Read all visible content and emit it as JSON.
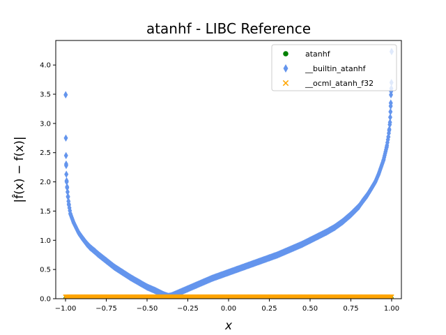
{
  "chart_data": {
    "type": "scatter",
    "title": "atanhf - LIBC Reference",
    "xlabel": "x",
    "ylabel": "|f̂(x) − f(x)|",
    "xlim": [
      -1.06,
      1.06
    ],
    "ylim": [
      0,
      4.42
    ],
    "xticks": [
      -1.0,
      -0.75,
      -0.5,
      -0.25,
      0.0,
      0.25,
      0.5,
      0.75,
      1.0
    ],
    "xtick_labels": [
      "−1.00",
      "−0.75",
      "−0.50",
      "−0.25",
      "0.00",
      "0.25",
      "0.50",
      "0.75",
      "1.00"
    ],
    "yticks": [
      0.0,
      0.5,
      1.0,
      1.5,
      2.0,
      2.5,
      3.0,
      3.5,
      4.0
    ],
    "ytick_labels": [
      "0.0",
      "0.5",
      "1.0",
      "1.5",
      "2.0",
      "2.5",
      "3.0",
      "3.5",
      "4.0"
    ],
    "grid": false,
    "legend_position": "top-right",
    "series": [
      {
        "name": "atanhf",
        "marker": "circle",
        "color": "#008000",
        "x": [
          -1.0,
          1.0
        ],
        "values": [
          0.0,
          0.0
        ],
        "x_range": [
          -1.0,
          1.0
        ]
      },
      {
        "name": "__builtin_atanhf",
        "marker": "diamond",
        "color": "#6495ED",
        "x": [
          -0.999,
          -0.998,
          -0.997,
          -0.996,
          -0.995,
          -0.993,
          -0.99,
          -0.985,
          -0.98,
          -0.97,
          -0.95,
          -0.92,
          -0.9,
          -0.87,
          -0.85,
          -0.82,
          -0.8,
          -0.75,
          -0.7,
          -0.65,
          -0.6,
          -0.55,
          -0.5,
          -0.45,
          -0.4,
          -0.37,
          -0.35,
          -0.3,
          -0.25,
          -0.2,
          -0.15,
          -0.1,
          -0.05,
          0.0,
          0.05,
          0.1,
          0.15,
          0.2,
          0.25,
          0.3,
          0.35,
          0.4,
          0.45,
          0.5,
          0.55,
          0.6,
          0.65,
          0.7,
          0.75,
          0.8,
          0.82,
          0.85,
          0.87,
          0.9,
          0.92,
          0.95,
          0.97,
          0.98,
          0.985,
          0.99,
          0.993,
          0.995,
          0.996,
          0.997,
          0.998,
          0.999,
          1.0
        ],
        "values": [
          3.49,
          2.75,
          2.45,
          2.28,
          2.13,
          2.0,
          1.9,
          1.75,
          1.62,
          1.45,
          1.3,
          1.13,
          1.05,
          0.94,
          0.88,
          0.81,
          0.76,
          0.65,
          0.54,
          0.45,
          0.36,
          0.28,
          0.2,
          0.14,
          0.07,
          0.04,
          0.05,
          0.11,
          0.17,
          0.23,
          0.29,
          0.35,
          0.4,
          0.45,
          0.5,
          0.55,
          0.6,
          0.65,
          0.7,
          0.75,
          0.81,
          0.87,
          0.93,
          1.0,
          1.07,
          1.14,
          1.22,
          1.32,
          1.44,
          1.58,
          1.66,
          1.77,
          1.86,
          2.0,
          2.13,
          2.37,
          2.6,
          2.77,
          2.88,
          3.02,
          3.2,
          3.35,
          3.49,
          3.55,
          3.6,
          3.7,
          4.23
        ]
      },
      {
        "name": "__ocml_atanh_f32",
        "marker": "x",
        "color": "#FFA500",
        "x": [
          -1.0,
          1.0
        ],
        "values": [
          0.03,
          0.03
        ],
        "x_range": [
          -1.0,
          1.0
        ]
      }
    ]
  }
}
